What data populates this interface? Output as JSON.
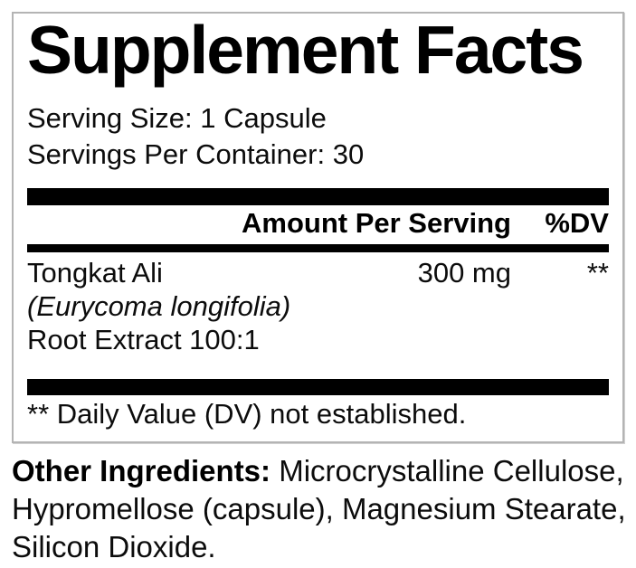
{
  "panel": {
    "title": "Supplement Facts",
    "serving_size": "Serving Size: 1 Capsule",
    "servings_per_container": "Servings Per Container: 30",
    "header": {
      "amount_label": "Amount Per Serving",
      "dv_label": "%DV"
    },
    "rows": [
      {
        "name_lines": [
          "Tongkat Ali",
          "(Eurycoma longifolia)",
          "Root Extract 100:1"
        ],
        "italic_line_index": 1,
        "amount": "300 mg",
        "dv": "**"
      }
    ],
    "footnote": "** Daily Value (DV) not established."
  },
  "other_ingredients": {
    "label": "Other Ingredients:",
    "text": " Microcrystalline Cellulose, Hypromellose (capsule), Magnesium Stearate, Silicon Dioxide."
  },
  "colors": {
    "text": "#0c0c0c",
    "title": "#000000",
    "bar": "#000000",
    "panel_border": "#b4b4b4",
    "background": "#ffffff"
  }
}
